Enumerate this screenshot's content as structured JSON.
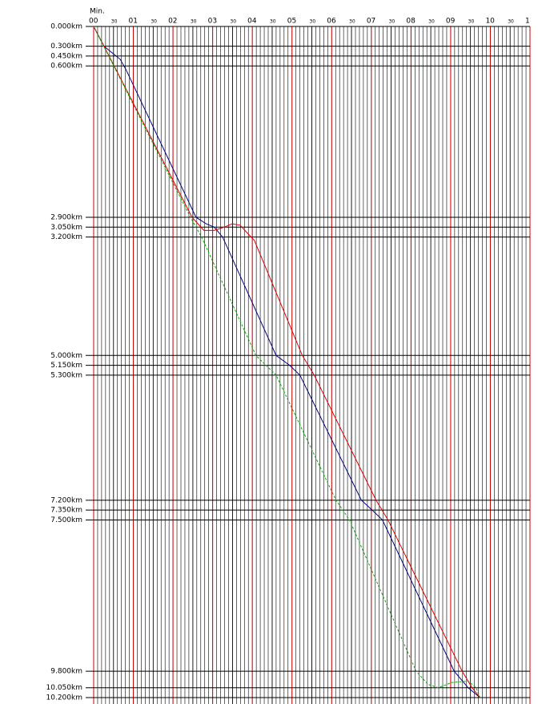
{
  "chart_data": {
    "type": "line",
    "x_label": "Min.",
    "xlim": [
      0,
      11
    ],
    "ylim": [
      0,
      10.2
    ],
    "y_inverted": true,
    "minor_grid_step": 0.1,
    "xticks": [
      {
        "value": 0,
        "label": "00"
      },
      {
        "value": 0.5,
        "label": "30"
      },
      {
        "value": 1,
        "label": "01"
      },
      {
        "value": 1.5,
        "label": "30"
      },
      {
        "value": 2,
        "label": "02"
      },
      {
        "value": 2.5,
        "label": "30"
      },
      {
        "value": 3,
        "label": "03"
      },
      {
        "value": 3.5,
        "label": "30"
      },
      {
        "value": 4,
        "label": "04"
      },
      {
        "value": 4.5,
        "label": "30"
      },
      {
        "value": 5,
        "label": "05"
      },
      {
        "value": 5.5,
        "label": "30"
      },
      {
        "value": 6,
        "label": "06"
      },
      {
        "value": 6.5,
        "label": "30"
      },
      {
        "value": 7,
        "label": "07"
      },
      {
        "value": 7.5,
        "label": "30"
      },
      {
        "value": 8,
        "label": "08"
      },
      {
        "value": 8.5,
        "label": "30"
      },
      {
        "value": 9,
        "label": "09"
      },
      {
        "value": 9.5,
        "label": "30"
      },
      {
        "value": 10,
        "label": "10"
      },
      {
        "value": 10.5,
        "label": "30"
      },
      {
        "value": 11,
        "label": "1"
      }
    ],
    "yticks": [
      {
        "value": 0,
        "label": "0.000km"
      },
      {
        "value": 0.3,
        "label": "0.300km"
      },
      {
        "value": 0.45,
        "label": "0.450km"
      },
      {
        "value": 0.6,
        "label": "0.600km"
      },
      {
        "value": 2.9,
        "label": "2.900km"
      },
      {
        "value": 3.05,
        "label": "3.050km"
      },
      {
        "value": 3.2,
        "label": "3.200km"
      },
      {
        "value": 5,
        "label": "5.000km"
      },
      {
        "value": 5.15,
        "label": "5.150km"
      },
      {
        "value": 5.3,
        "label": "5.300km"
      },
      {
        "value": 7.2,
        "label": "7.200km"
      },
      {
        "value": 7.35,
        "label": "7.350km"
      },
      {
        "value": 7.5,
        "label": "7.500km"
      },
      {
        "value": 9.8,
        "label": "9.800km"
      },
      {
        "value": 10.05,
        "label": "10.050km"
      },
      {
        "value": 10.2,
        "label": "10.200km"
      }
    ],
    "minute_grid_color": "#cc0000",
    "grid_color": "#000000",
    "series": [
      {
        "color": "#000080",
        "dashed": false,
        "x": [
          0,
          0.26,
          0.67,
          0.81,
          2.58,
          2.84,
          3.04,
          3.25,
          4.6,
          4.94,
          5.2,
          6.75,
          7.02,
          7.28,
          9.09,
          9.44,
          9.74
        ],
        "values": [
          0,
          0.3,
          0.5,
          0.65,
          2.9,
          3.0,
          3.05,
          3.2,
          5.0,
          5.15,
          5.3,
          7.2,
          7.35,
          7.5,
          9.8,
          10.05,
          10.2
        ]
      },
      {
        "color": "#dd0000",
        "dashed": false,
        "x": [
          0,
          0.26,
          2.48,
          2.78,
          3.04,
          3.29,
          3.49,
          3.69,
          3.89,
          4.05,
          5.26,
          5.56,
          7.12,
          7.42,
          9.29,
          9.54,
          9.74
        ],
        "values": [
          0,
          0.3,
          2.9,
          3.1,
          3.1,
          3.05,
          3.0,
          3.02,
          3.15,
          3.25,
          5.0,
          5.3,
          7.2,
          7.5,
          9.8,
          10.05,
          10.2
        ]
      },
      {
        "color": "#00b000",
        "dashed": true,
        "x": [
          0,
          2.44,
          2.72,
          4.09,
          4.6,
          6.11,
          6.45,
          8.13,
          8.43,
          8.69,
          9.03,
          9.44,
          9.64,
          9.74
        ],
        "values": [
          0,
          2.9,
          3.2,
          5.0,
          5.3,
          7.2,
          7.5,
          9.8,
          10.0,
          10.05,
          9.97,
          9.95,
          10.05,
          10.2
        ]
      }
    ]
  }
}
